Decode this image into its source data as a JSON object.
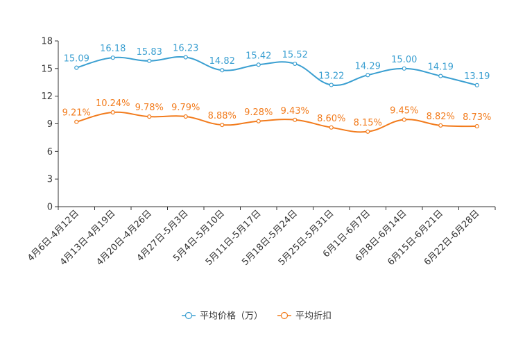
{
  "chart_data": {
    "type": "line",
    "title": "",
    "xlabel": "",
    "ylabel": "",
    "ylim": [
      0,
      18
    ],
    "yticks": [
      0,
      3,
      6,
      9,
      12,
      15,
      18
    ],
    "grid": false,
    "legend_position": "bottom",
    "categories": [
      "4月6日-4月12日",
      "4月13日-4月19日",
      "4月20日-4月26日",
      "4月27日-5月3日",
      "5月4日-5月10日",
      "5月11日-5月17日",
      "5月18日-5月24日",
      "5月25日-5月31日",
      "6月1日-6月7日",
      "6月8日-6月14日",
      "6月15日-6月21日",
      "6月22日-6月28日"
    ],
    "series": [
      {
        "name": "平均价格（万）",
        "color": "#3a9fd1",
        "values": [
          15.09,
          16.18,
          15.83,
          16.23,
          14.82,
          15.42,
          15.52,
          13.22,
          14.29,
          15.0,
          14.19,
          13.19
        ],
        "labels": [
          "15.09",
          "16.18",
          "15.83",
          "16.23",
          "14.82",
          "15.42",
          "15.52",
          "13.22",
          "14.29",
          "15.00",
          "14.19",
          "13.19"
        ]
      },
      {
        "name": "平均折扣",
        "color": "#f27b1c",
        "values": [
          9.21,
          10.24,
          9.78,
          9.79,
          8.88,
          9.28,
          9.43,
          8.6,
          8.15,
          9.45,
          8.82,
          8.73
        ],
        "labels": [
          "9.21%",
          "10.24%",
          "9.78%",
          "9.79%",
          "8.88%",
          "9.28%",
          "9.43%",
          "8.60%",
          "8.15%",
          "9.45%",
          "8.82%",
          "8.73%"
        ]
      }
    ]
  }
}
